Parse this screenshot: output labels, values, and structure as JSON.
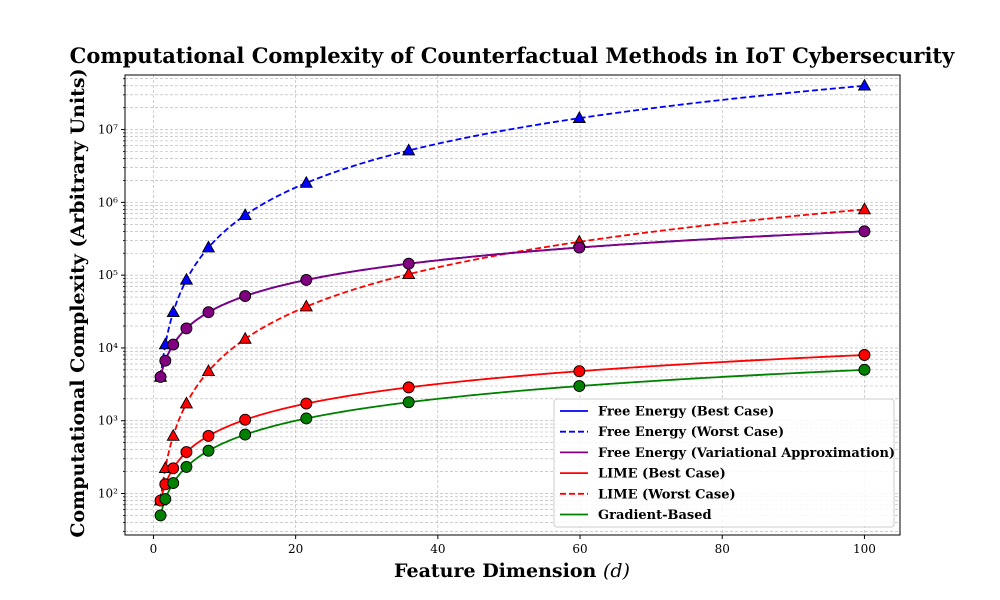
{
  "chart_data": {
    "type": "line",
    "title": "Computational Complexity of Counterfactual Methods in IoT Cybersecurity",
    "xlabel": "Feature Dimension",
    "xlabel_symbol": "(d)",
    "ylabel": "Computational Complexity (Arbitrary Units)",
    "xlim": [
      -4,
      105
    ],
    "ylim_log10": [
      1.43,
      7.75
    ],
    "yscale": "log",
    "grid": true,
    "legend_position": "lower-right",
    "x_ticks": [
      0,
      20,
      40,
      60,
      80,
      100
    ],
    "x_tick_labels": [
      "0",
      "20",
      "40",
      "60",
      "80",
      "100"
    ],
    "y_ticks_log10": [
      2,
      3,
      4,
      5,
      6,
      7
    ],
    "y_tick_labels": [
      "10²",
      "10³",
      "10⁴",
      "10⁵",
      "10⁶",
      "10⁷"
    ],
    "markers_x": [
      1,
      1.67,
      2.78,
      4.64,
      7.74,
      12.9,
      21.5,
      35.9,
      59.9,
      100
    ],
    "series": [
      {
        "name": "Free Energy (Best Case)",
        "color": "#0000ff",
        "dash": "solid",
        "marker": "none",
        "formula": "4000*d^1",
        "x": [
          1,
          100
        ],
        "values": [
          4000,
          400000
        ]
      },
      {
        "name": "Free Energy (Worst Case)",
        "color": "#0000ff",
        "dash": "dashed",
        "marker": "triangle",
        "formula": "4000*d^2",
        "x": [
          1,
          1.67,
          2.78,
          4.64,
          7.74,
          12.9,
          21.5,
          35.9,
          59.9,
          100
        ],
        "values": [
          4000,
          11156,
          30914,
          86118,
          239630,
          665640,
          1849000,
          5155240,
          14352040,
          40000000
        ]
      },
      {
        "name": "Free Energy (Variational Approximation)",
        "color": "#800080",
        "dash": "solid",
        "marker": "circle",
        "formula": "4000*d",
        "x": [
          1,
          1.67,
          2.78,
          4.64,
          7.74,
          12.9,
          21.5,
          35.9,
          59.9,
          100
        ],
        "values": [
          4000,
          6680,
          11120,
          18560,
          30960,
          51600,
          86000,
          143600,
          239600,
          400000
        ]
      },
      {
        "name": "LIME (Best Case)",
        "color": "#ff0000",
        "dash": "solid",
        "marker": "circle",
        "formula": "80*d",
        "x": [
          1,
          1.67,
          2.78,
          4.64,
          7.74,
          12.9,
          21.5,
          35.9,
          59.9,
          100
        ],
        "values": [
          80,
          134,
          222,
          371,
          619,
          1032,
          1720,
          2872,
          4792,
          8000
        ]
      },
      {
        "name": "LIME (Worst Case)",
        "color": "#ff0000",
        "dash": "dashed",
        "marker": "triangle",
        "formula": "80*d^2",
        "x": [
          1,
          1.67,
          2.78,
          4.64,
          7.74,
          12.9,
          21.5,
          35.9,
          59.9,
          100
        ],
        "values": [
          80,
          223,
          618,
          1722,
          4793,
          13313,
          36980,
          103105,
          287041,
          800000
        ]
      },
      {
        "name": "Gradient-Based",
        "color": "#008000",
        "dash": "solid",
        "marker": "circle",
        "formula": "50*d",
        "x": [
          1,
          1.67,
          2.78,
          4.64,
          7.74,
          12.9,
          21.5,
          35.9,
          59.9,
          100
        ],
        "values": [
          50,
          84,
          139,
          232,
          387,
          645,
          1075,
          1795,
          2995,
          5000
        ]
      }
    ]
  }
}
